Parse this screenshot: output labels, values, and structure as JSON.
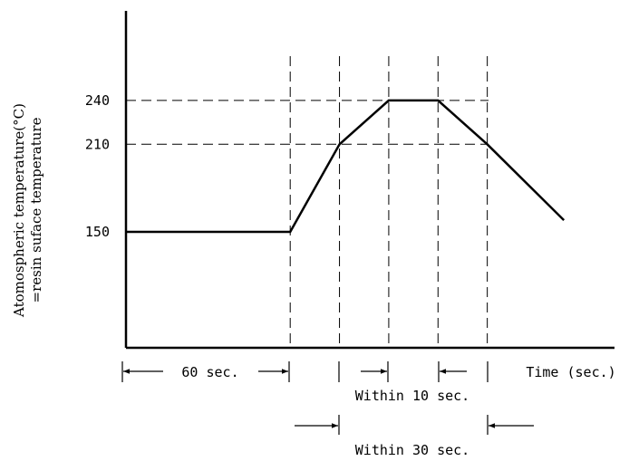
{
  "chart_data": {
    "type": "line",
    "title": "",
    "ylabel_lines": [
      "Atomospheric temperature(°C)",
      "=resin suface temperature"
    ],
    "xlabel": "Time (sec.)",
    "ytick_labels": [
      "240",
      "210",
      "150"
    ],
    "series": [
      {
        "x": [
          0,
          60,
          78,
          96,
          114,
          132,
          160
        ],
        "y": [
          150,
          150,
          210,
          240,
          240,
          210,
          158
        ]
      }
    ],
    "dashed_reference_y": [
      240,
      210
    ],
    "dashed_reference_x": [
      60,
      78,
      96,
      114,
      132
    ],
    "annotations": {
      "sixty": "60 sec.",
      "within10": "Within 10 sec.",
      "within30": "Within 30 sec."
    }
  }
}
